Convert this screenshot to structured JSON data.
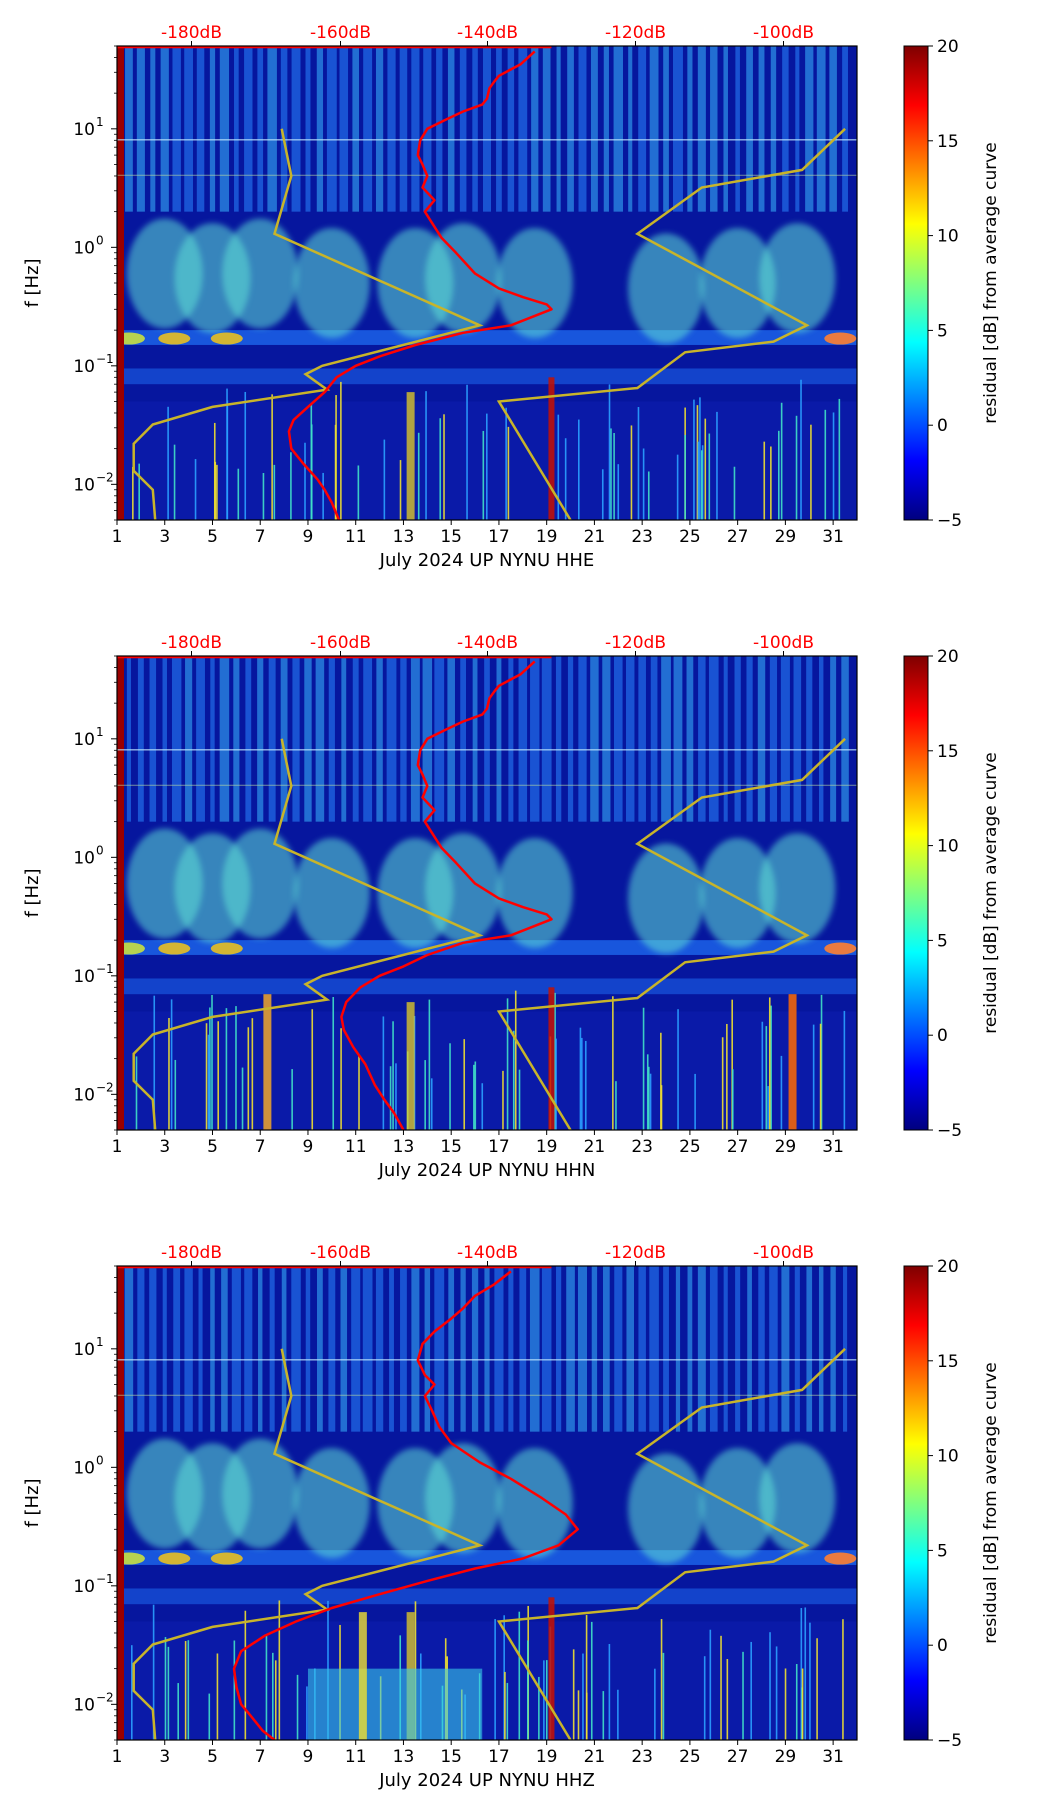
{
  "chart_data": [
    {
      "type": "heatmap",
      "title": "",
      "xlabel": "July 2024 UP NYNU  HHE",
      "ylabel": "f [Hz]",
      "x_ticks": [
        "1",
        "3",
        "5",
        "7",
        "9",
        "11",
        "13",
        "15",
        "17",
        "19",
        "21",
        "23",
        "25",
        "27",
        "29",
        "31"
      ],
      "xlim": [
        1,
        32
      ],
      "y_scale": "log",
      "ylim": [
        0.005,
        50
      ],
      "y_ticks": [
        {
          "exp": "−2",
          "value": 0.01
        },
        {
          "exp": "−1",
          "value": 0.1
        },
        {
          "exp": "0",
          "value": 1
        },
        {
          "exp": "1",
          "value": 10
        }
      ],
      "top_ticks": [
        "-180dB",
        "-160dB",
        "-140dB",
        "-120dB",
        "-100dB"
      ],
      "top_tick_color": "#ff0000",
      "colorbar": {
        "label": "residual [dB] from average curve",
        "min": -5,
        "max": 20,
        "ticks": [
          "20",
          "15",
          "10",
          "5",
          "0",
          "−5"
        ],
        "tick_values": [
          20,
          15,
          10,
          5,
          0,
          -5
        ]
      },
      "series": [
        {
          "name": "model-bounds",
          "color": "#c8b42a",
          "left": {
            "x": [
              7.9,
              8.3,
              7.6,
              16.2,
              9.6,
              8.9,
              9.8,
              5.0,
              2.5,
              1.7,
              1.7,
              2.5,
              2.6
            ],
            "y": [
              10,
              4,
              1.3,
              0.22,
              0.1,
              0.085,
              0.063,
              0.045,
              0.032,
              0.022,
              0.013,
              0.009,
              0.005
            ]
          },
          "right": {
            "x": [
              31.5,
              29.7,
              25.5,
              22.8,
              29.9,
              28.5,
              24.8,
              22.8,
              17.0,
              20.0
            ],
            "y": [
              10,
              4.5,
              3.2,
              1.3,
              0.22,
              0.16,
              0.13,
              0.065,
              0.05,
              0.005
            ]
          }
        },
        {
          "name": "noise-level",
          "color": "#ff0000",
          "x": [
            18.5,
            17.9,
            17.0,
            16.8,
            16.6,
            16.5,
            16.3,
            15.5,
            14.8,
            14.0,
            13.7,
            13.6,
            13.8,
            14.0,
            13.8,
            14.3,
            13.9,
            14.2,
            14.6,
            15.2,
            16.0,
            17.0,
            18.0,
            19.0,
            19.2,
            17.5,
            15.5,
            13.5,
            12.0,
            11.0,
            10.2,
            9.7,
            9.0,
            8.4,
            8.2,
            8.3,
            8.8,
            9.4,
            9.7,
            10.0,
            10.3
          ],
          "y": [
            45,
            35,
            28,
            25,
            22,
            18,
            16,
            14,
            12,
            10,
            8,
            6,
            5,
            4,
            3.2,
            2.5,
            2.0,
            1.6,
            1.2,
            0.9,
            0.6,
            0.45,
            0.38,
            0.33,
            0.3,
            0.22,
            0.19,
            0.15,
            0.12,
            0.1,
            0.08,
            0.06,
            0.045,
            0.035,
            0.028,
            0.02,
            0.015,
            0.011,
            0.009,
            0.007,
            0.005
          ]
        }
      ]
    },
    {
      "type": "heatmap",
      "title": "",
      "xlabel": "July 2024 UP NYNU  HHN",
      "ylabel": "f [Hz]",
      "x_ticks": [
        "1",
        "3",
        "5",
        "7",
        "9",
        "11",
        "13",
        "15",
        "17",
        "19",
        "21",
        "23",
        "25",
        "27",
        "29",
        "31"
      ],
      "xlim": [
        1,
        32
      ],
      "y_scale": "log",
      "ylim": [
        0.005,
        50
      ],
      "y_ticks": [
        {
          "exp": "−2",
          "value": 0.01
        },
        {
          "exp": "−1",
          "value": 0.1
        },
        {
          "exp": "0",
          "value": 1
        },
        {
          "exp": "1",
          "value": 10
        }
      ],
      "top_ticks": [
        "-180dB",
        "-160dB",
        "-140dB",
        "-120dB",
        "-100dB"
      ],
      "top_tick_color": "#ff0000",
      "colorbar": {
        "label": "residual [dB] from average curve",
        "min": -5,
        "max": 20,
        "ticks": [
          "20",
          "15",
          "10",
          "5",
          "0",
          "−5"
        ],
        "tick_values": [
          20,
          15,
          10,
          5,
          0,
          -5
        ]
      },
      "series": [
        {
          "name": "model-bounds",
          "color": "#c8b42a",
          "left": {
            "x": [
              7.9,
              8.3,
              7.6,
              16.2,
              9.6,
              8.9,
              9.8,
              5.0,
              2.5,
              1.7,
              1.7,
              2.5,
              2.6
            ],
            "y": [
              10,
              4,
              1.3,
              0.22,
              0.1,
              0.085,
              0.063,
              0.045,
              0.032,
              0.022,
              0.013,
              0.009,
              0.005
            ]
          },
          "right": {
            "x": [
              31.5,
              29.7,
              25.5,
              22.8,
              29.9,
              28.5,
              24.8,
              22.8,
              17.0,
              20.0
            ],
            "y": [
              10,
              4.5,
              3.2,
              1.3,
              0.22,
              0.16,
              0.13,
              0.065,
              0.05,
              0.005
            ]
          }
        },
        {
          "name": "noise-level",
          "color": "#ff0000",
          "x": [
            18.5,
            17.9,
            17.0,
            16.8,
            16.6,
            16.5,
            16.3,
            15.5,
            14.8,
            14.0,
            13.7,
            13.6,
            13.8,
            14.0,
            13.8,
            14.3,
            13.9,
            14.2,
            14.6,
            15.2,
            16.0,
            17.0,
            18.0,
            19.0,
            19.2,
            17.5,
            15.5,
            14.0,
            13.0,
            12.0,
            11.2,
            10.6,
            10.4,
            10.5,
            10.9,
            11.4,
            11.8,
            12.2,
            12.6,
            13.0
          ],
          "y": [
            45,
            35,
            28,
            25,
            22,
            18,
            16,
            14,
            12,
            10,
            8,
            6,
            5,
            4,
            3.2,
            2.5,
            2.0,
            1.6,
            1.2,
            0.9,
            0.6,
            0.45,
            0.38,
            0.33,
            0.3,
            0.22,
            0.19,
            0.15,
            0.12,
            0.1,
            0.08,
            0.06,
            0.045,
            0.035,
            0.025,
            0.018,
            0.012,
            0.009,
            0.007,
            0.005
          ]
        }
      ]
    },
    {
      "type": "heatmap",
      "title": "",
      "xlabel": "July 2024 UP NYNU  HHZ",
      "ylabel": "f [Hz]",
      "x_ticks": [
        "1",
        "3",
        "5",
        "7",
        "9",
        "11",
        "13",
        "15",
        "17",
        "19",
        "21",
        "23",
        "25",
        "27",
        "29",
        "31"
      ],
      "xlim": [
        1,
        32
      ],
      "y_scale": "log",
      "ylim": [
        0.005,
        50
      ],
      "y_ticks": [
        {
          "exp": "−2",
          "value": 0.01
        },
        {
          "exp": "−1",
          "value": 0.1
        },
        {
          "exp": "0",
          "value": 1
        },
        {
          "exp": "1",
          "value": 10
        }
      ],
      "top_ticks": [
        "-180dB",
        "-160dB",
        "-140dB",
        "-120dB",
        "-100dB"
      ],
      "top_tick_color": "#ff0000",
      "colorbar": {
        "label": "residual [dB] from average curve",
        "min": -5,
        "max": 20,
        "ticks": [
          "20",
          "15",
          "10",
          "5",
          "0",
          "−5"
        ],
        "tick_values": [
          20,
          15,
          10,
          5,
          0,
          -5
        ]
      },
      "series": [
        {
          "name": "model-bounds",
          "color": "#c8b42a",
          "left": {
            "x": [
              7.9,
              8.3,
              7.6,
              16.2,
              9.6,
              8.9,
              9.8,
              5.0,
              2.5,
              1.7,
              1.7,
              2.5,
              2.6
            ],
            "y": [
              10,
              4,
              1.3,
              0.22,
              0.1,
              0.085,
              0.063,
              0.045,
              0.032,
              0.022,
              0.013,
              0.009,
              0.005
            ]
          },
          "right": {
            "x": [
              31.5,
              29.7,
              25.5,
              22.8,
              29.9,
              28.5,
              24.8,
              22.8,
              17.0,
              20.0
            ],
            "y": [
              10,
              4.5,
              3.2,
              1.3,
              0.22,
              0.16,
              0.13,
              0.065,
              0.05,
              0.005
            ]
          }
        },
        {
          "name": "noise-level",
          "color": "#ff0000",
          "x": [
            17.5,
            16.8,
            16.0,
            15.5,
            15.0,
            14.3,
            13.8,
            13.6,
            13.9,
            14.3,
            13.9,
            14.2,
            14.5,
            15.0,
            16.2,
            17.5,
            18.8,
            19.8,
            20.3,
            19.5,
            18.0,
            16.0,
            14.0,
            12.0,
            10.0,
            8.5,
            7.2,
            6.2,
            5.9,
            6.0,
            6.2,
            6.6,
            7.1,
            7.6
          ],
          "y": [
            45,
            35,
            28,
            22,
            18,
            14,
            11,
            8,
            6,
            5,
            4,
            3,
            2.2,
            1.6,
            1.1,
            0.8,
            0.55,
            0.4,
            0.3,
            0.22,
            0.17,
            0.14,
            0.11,
            0.085,
            0.065,
            0.05,
            0.038,
            0.028,
            0.02,
            0.014,
            0.01,
            0.008,
            0.006,
            0.005
          ]
        }
      ]
    }
  ]
}
